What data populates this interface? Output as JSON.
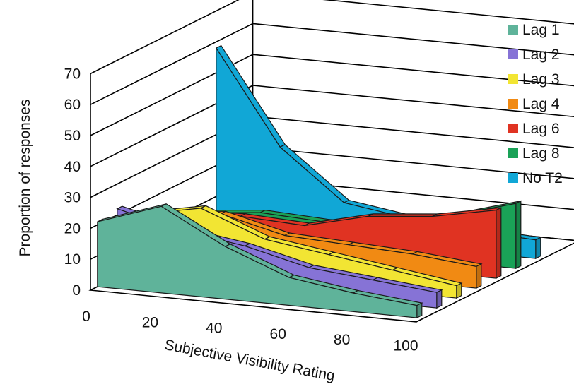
{
  "chart_data": {
    "type": "area",
    "subtype": "3d-ribbon",
    "title": "",
    "xlabel": "Subjective Visibility Rating",
    "ylabel": "Proportion of responses",
    "x": [
      0,
      20,
      40,
      60,
      80,
      100
    ],
    "x_ticks": [
      "0",
      "20",
      "40",
      "60",
      "80",
      "100"
    ],
    "y_ticks": [
      "0",
      "10",
      "20",
      "30",
      "40",
      "50",
      "60",
      "70"
    ],
    "ylim": [
      0,
      70
    ],
    "grid": true,
    "legend_position": "right",
    "series": [
      {
        "name": "Lag 1",
        "color": "#5fb39a",
        "values": [
          21,
          28,
          17,
          9,
          6,
          4
        ]
      },
      {
        "name": "Lag 2",
        "color": "#8673d6",
        "values": [
          22,
          17,
          14,
          9,
          7,
          5
        ]
      },
      {
        "name": "Lag 3",
        "color": "#f2e533",
        "values": [
          17,
          21,
          13,
          10,
          7,
          4
        ]
      },
      {
        "name": "Lag 4",
        "color": "#f18a13",
        "values": [
          14,
          16,
          11,
          10,
          9,
          7
        ]
      },
      {
        "name": "Lag 6",
        "color": "#e03322",
        "values": [
          11,
          12,
          11,
          16,
          18,
          22
        ]
      },
      {
        "name": "Lag 8",
        "color": "#1aa257",
        "values": [
          8,
          10,
          9,
          10,
          15,
          21
        ]
      },
      {
        "name": "No T2",
        "color": "#11a7d6",
        "values": [
          58,
          28,
          12,
          9,
          7,
          6
        ]
      }
    ]
  }
}
